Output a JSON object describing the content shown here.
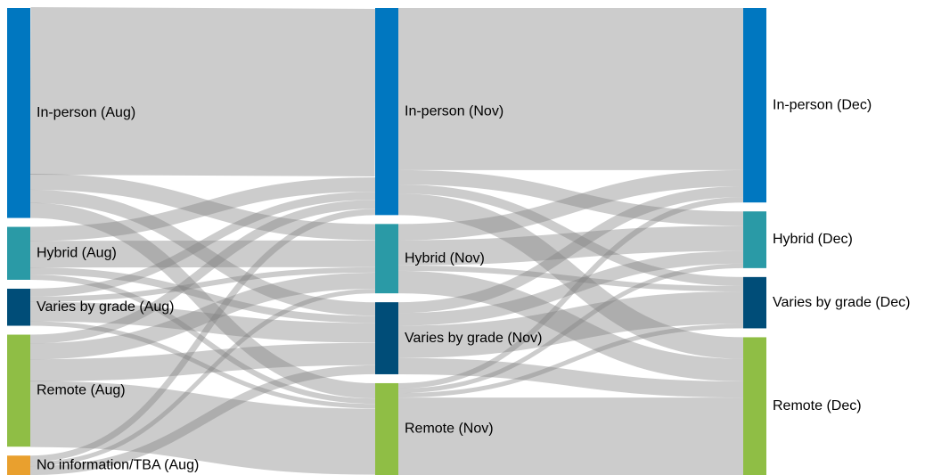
{
  "chart_data": {
    "type": "sankey",
    "stages": [
      {
        "nodes": [
          {
            "label": "In-person (Aug)",
            "value": 238,
            "color": "#0077c0"
          },
          {
            "label": "Hybrid (Aug)",
            "value": 60,
            "color": "#2a9aa6"
          },
          {
            "label": "Varies by grade (Aug)",
            "value": 42,
            "color": "#004d78"
          },
          {
            "label": "Remote (Aug)",
            "value": 127,
            "color": "#8fbe45"
          },
          {
            "label": "No information/TBA (Aug)",
            "value": 22,
            "color": "#e9a02e"
          }
        ]
      },
      {
        "nodes": [
          {
            "label": "In-person (Nov)",
            "value": 230,
            "color": "#0077c0"
          },
          {
            "label": "Hybrid (Nov)",
            "value": 77,
            "color": "#2a9aa6"
          },
          {
            "label": "Varies by grade (Nov)",
            "value": 80,
            "color": "#004d78"
          },
          {
            "label": "Remote (Nov)",
            "value": 102,
            "color": "#8fbe45"
          }
        ]
      },
      {
        "nodes": [
          {
            "label": "In-person (Dec)",
            "value": 216,
            "color": "#0077c0"
          },
          {
            "label": "Hybrid (Dec)",
            "value": 63,
            "color": "#2a9aa6"
          },
          {
            "label": "Varies by grade (Dec)",
            "value": 57,
            "color": "#004d78"
          },
          {
            "label": "Remote (Dec)",
            "value": 153,
            "color": "#8fbe45"
          }
        ]
      }
    ],
    "links": [
      {
        "source": [
          0,
          0
        ],
        "target": [
          1,
          0
        ],
        "value": 188
      },
      {
        "source": [
          0,
          0
        ],
        "target": [
          1,
          1
        ],
        "value": 18
      },
      {
        "source": [
          0,
          0
        ],
        "target": [
          1,
          2
        ],
        "value": 15
      },
      {
        "source": [
          0,
          0
        ],
        "target": [
          1,
          3
        ],
        "value": 17
      },
      {
        "source": [
          0,
          1
        ],
        "target": [
          1,
          0
        ],
        "value": 16
      },
      {
        "source": [
          0,
          1
        ],
        "target": [
          1,
          1
        ],
        "value": 30
      },
      {
        "source": [
          0,
          1
        ],
        "target": [
          1,
          2
        ],
        "value": 8
      },
      {
        "source": [
          0,
          1
        ],
        "target": [
          1,
          3
        ],
        "value": 6
      },
      {
        "source": [
          0,
          2
        ],
        "target": [
          1,
          0
        ],
        "value": 9
      },
      {
        "source": [
          0,
          2
        ],
        "target": [
          1,
          1
        ],
        "value": 6
      },
      {
        "source": [
          0,
          2
        ],
        "target": [
          1,
          2
        ],
        "value": 22
      },
      {
        "source": [
          0,
          2
        ],
        "target": [
          1,
          3
        ],
        "value": 5
      },
      {
        "source": [
          0,
          3
        ],
        "target": [
          1,
          0
        ],
        "value": 10
      },
      {
        "source": [
          0,
          3
        ],
        "target": [
          1,
          1
        ],
        "value": 18
      },
      {
        "source": [
          0,
          3
        ],
        "target": [
          1,
          2
        ],
        "value": 25
      },
      {
        "source": [
          0,
          3
        ],
        "target": [
          1,
          3
        ],
        "value": 74
      },
      {
        "source": [
          0,
          4
        ],
        "target": [
          1,
          0
        ],
        "value": 7
      },
      {
        "source": [
          0,
          4
        ],
        "target": [
          1,
          1
        ],
        "value": 5
      },
      {
        "source": [
          0,
          4
        ],
        "target": [
          1,
          2
        ],
        "value": 10
      },
      {
        "source": [
          1,
          0
        ],
        "target": [
          2,
          0
        ],
        "value": 180
      },
      {
        "source": [
          1,
          0
        ],
        "target": [
          2,
          1
        ],
        "value": 16
      },
      {
        "source": [
          1,
          0
        ],
        "target": [
          2,
          2
        ],
        "value": 10
      },
      {
        "source": [
          1,
          0
        ],
        "target": [
          2,
          3
        ],
        "value": 24
      },
      {
        "source": [
          1,
          1
        ],
        "target": [
          2,
          0
        ],
        "value": 18
      },
      {
        "source": [
          1,
          1
        ],
        "target": [
          2,
          1
        ],
        "value": 28
      },
      {
        "source": [
          1,
          1
        ],
        "target": [
          2,
          2
        ],
        "value": 6
      },
      {
        "source": [
          1,
          1
        ],
        "target": [
          2,
          3
        ],
        "value": 25
      },
      {
        "source": [
          1,
          2
        ],
        "target": [
          2,
          0
        ],
        "value": 12
      },
      {
        "source": [
          1,
          2
        ],
        "target": [
          2,
          1
        ],
        "value": 14
      },
      {
        "source": [
          1,
          2
        ],
        "target": [
          2,
          2
        ],
        "value": 36
      },
      {
        "source": [
          1,
          2
        ],
        "target": [
          2,
          3
        ],
        "value": 18
      },
      {
        "source": [
          1,
          3
        ],
        "target": [
          2,
          0
        ],
        "value": 6
      },
      {
        "source": [
          1,
          3
        ],
        "target": [
          2,
          1
        ],
        "value": 5
      },
      {
        "source": [
          1,
          3
        ],
        "target": [
          2,
          2
        ],
        "value": 5
      },
      {
        "source": [
          1,
          3
        ],
        "target": [
          2,
          3
        ],
        "value": 86
      }
    ],
    "link_color": "#808080",
    "link_opacity": 0.4,
    "legend": "none",
    "grid": false
  }
}
